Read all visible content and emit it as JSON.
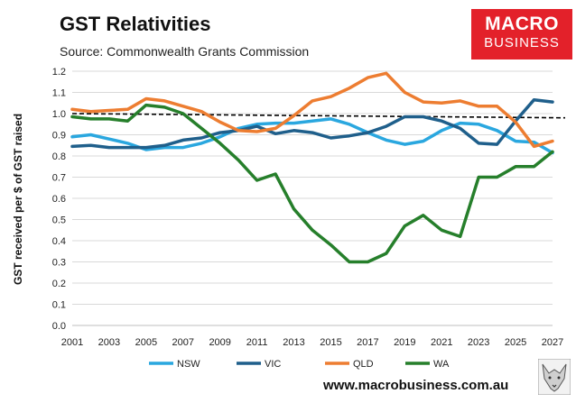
{
  "header": {
    "title": "GST Relativities",
    "subtitle": "Source: Commonwealth Grants Commission"
  },
  "logo": {
    "line1": "MACRO",
    "line2": "BUSINESS",
    "color": "#e3212a"
  },
  "footer": {
    "url": "www.macrobusiness.com.au"
  },
  "chart_data": {
    "type": "line",
    "title": "GST Relativities",
    "ylabel": "GST received per $ of GST raised",
    "xlabel": "",
    "ylim": [
      0.0,
      1.2
    ],
    "xlim": [
      2001,
      2027
    ],
    "x_ticks": [
      2001,
      2003,
      2005,
      2007,
      2009,
      2011,
      2013,
      2015,
      2017,
      2019,
      2021,
      2023,
      2025,
      2027
    ],
    "y_ticks": [
      0.0,
      0.1,
      0.2,
      0.3,
      0.4,
      0.5,
      0.6,
      0.7,
      0.8,
      0.9,
      1.0,
      1.1,
      1.2
    ],
    "x": [
      2001,
      2002,
      2003,
      2004,
      2005,
      2006,
      2007,
      2008,
      2009,
      2010,
      2011,
      2012,
      2013,
      2014,
      2015,
      2016,
      2017,
      2018,
      2019,
      2020,
      2021,
      2022,
      2023,
      2024,
      2025,
      2026,
      2027
    ],
    "grid": "horizontal",
    "legend": "bottom",
    "reference_line": {
      "y_start": 1.0,
      "y_end": 0.98,
      "style": "dashed"
    },
    "series": [
      {
        "name": "NSW",
        "color": "#2aa7df",
        "values": [
          0.89,
          0.9,
          0.88,
          0.86,
          0.83,
          0.84,
          0.84,
          0.86,
          0.89,
          0.93,
          0.95,
          0.955,
          0.955,
          0.965,
          0.975,
          0.95,
          0.91,
          0.875,
          0.855,
          0.87,
          0.92,
          0.955,
          0.95,
          0.92,
          0.87,
          0.865,
          0.815
        ]
      },
      {
        "name": "VIC",
        "color": "#1f5f8b",
        "values": [
          0.845,
          0.85,
          0.84,
          0.84,
          0.84,
          0.85,
          0.875,
          0.885,
          0.91,
          0.92,
          0.94,
          0.905,
          0.92,
          0.91,
          0.885,
          0.895,
          0.91,
          0.94,
          0.985,
          0.985,
          0.965,
          0.93,
          0.86,
          0.855,
          0.965,
          1.065,
          1.055
        ]
      },
      {
        "name": "QLD",
        "color": "#ed7d31",
        "values": [
          1.02,
          1.01,
          1.015,
          1.02,
          1.07,
          1.06,
          1.035,
          1.01,
          0.96,
          0.92,
          0.915,
          0.93,
          0.99,
          1.06,
          1.08,
          1.12,
          1.17,
          1.19,
          1.1,
          1.055,
          1.05,
          1.06,
          1.035,
          1.035,
          0.96,
          0.845,
          0.87
        ]
      },
      {
        "name": "WA",
        "color": "#267f2b",
        "values": [
          0.985,
          0.975,
          0.975,
          0.965,
          1.04,
          1.03,
          1.0,
          0.93,
          0.86,
          0.78,
          0.685,
          0.715,
          0.55,
          0.45,
          0.38,
          0.3,
          0.3,
          0.34,
          0.47,
          0.52,
          0.45,
          0.42,
          0.7,
          0.7,
          0.75,
          0.75,
          0.82
        ]
      }
    ]
  }
}
